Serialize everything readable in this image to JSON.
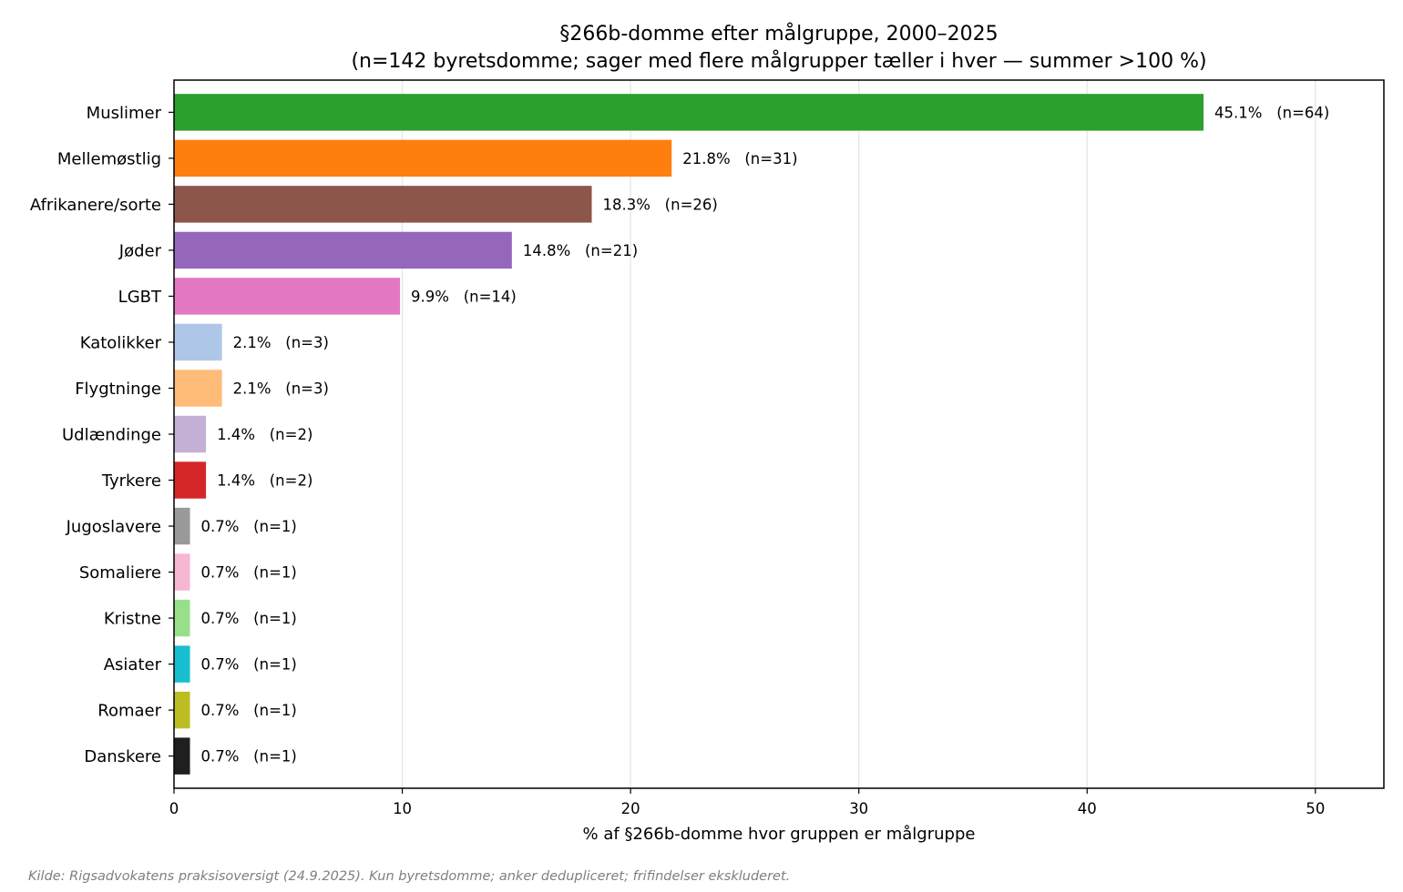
{
  "chart_data": {
    "type": "bar",
    "orientation": "horizontal",
    "title": "§266b-domme efter målgruppe, 2000–2025",
    "subtitle": "(n=142 byretsdomme; sager med flere målgrupper tæller i hver — summer >100 %)",
    "xlabel": "% af §266b-domme hvor gruppen er målgruppe",
    "ylabel": "",
    "xlim": [
      0,
      53
    ],
    "xticks": [
      0,
      10,
      20,
      30,
      40,
      50
    ],
    "grid": "x",
    "bars": [
      {
        "category": "Muslimer",
        "value": 45.1,
        "label": "45.1%   (n=64)",
        "color": "#2ca02c"
      },
      {
        "category": "Mellemøstlig",
        "value": 21.8,
        "label": "21.8%   (n=31)",
        "color": "#ff7f0e"
      },
      {
        "category": "Afrikanere/sorte",
        "value": 18.3,
        "label": "18.3%   (n=26)",
        "color": "#8c564b"
      },
      {
        "category": "Jøder",
        "value": 14.8,
        "label": "14.8%   (n=21)",
        "color": "#9467bd"
      },
      {
        "category": "LGBT",
        "value": 9.9,
        "label": "9.9%   (n=14)",
        "color": "#e377c2"
      },
      {
        "category": "Katolikker",
        "value": 2.1,
        "label": "2.1%   (n=3)",
        "color": "#aec7e8"
      },
      {
        "category": "Flygtninge",
        "value": 2.1,
        "label": "2.1%   (n=3)",
        "color": "#ffbb78"
      },
      {
        "category": "Udlændinge",
        "value": 1.4,
        "label": "1.4%   (n=2)",
        "color": "#c5b0d5"
      },
      {
        "category": "Tyrkere",
        "value": 1.4,
        "label": "1.4%   (n=2)",
        "color": "#d62728"
      },
      {
        "category": "Jugoslavere",
        "value": 0.7,
        "label": "0.7%   (n=1)",
        "color": "#999999"
      },
      {
        "category": "Somaliere",
        "value": 0.7,
        "label": "0.7%   (n=1)",
        "color": "#f7b6d2"
      },
      {
        "category": "Kristne",
        "value": 0.7,
        "label": "0.7%   (n=1)",
        "color": "#98df8a"
      },
      {
        "category": "Asiater",
        "value": 0.7,
        "label": "0.7%   (n=1)",
        "color": "#17becf"
      },
      {
        "category": "Romaer",
        "value": 0.7,
        "label": "0.7%   (n=1)",
        "color": "#bcbd22"
      },
      {
        "category": "Danskere",
        "value": 0.7,
        "label": "0.7%   (n=1)",
        "color": "#1f1f1f"
      }
    ]
  },
  "source_note": "Kilde: Rigsadvokatens praksisoversigt (24.9.2025). Kun byretsdomme; anker dedupliceret; frifindelser ekskluderet."
}
